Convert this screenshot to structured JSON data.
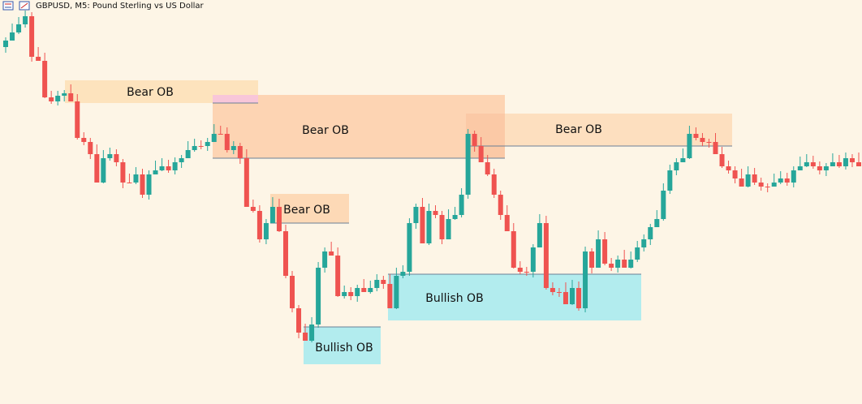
{
  "header": {
    "title": "GBPUSD, M5:  Pound Sterling vs US Dollar"
  },
  "zones": [
    {
      "label": "Bear OB"
    },
    {
      "label": "Bear OB"
    },
    {
      "label": "Bear OB"
    },
    {
      "label": "Bear OB"
    },
    {
      "label": "Bullish OB"
    },
    {
      "label": "Bullish OB"
    }
  ]
}
